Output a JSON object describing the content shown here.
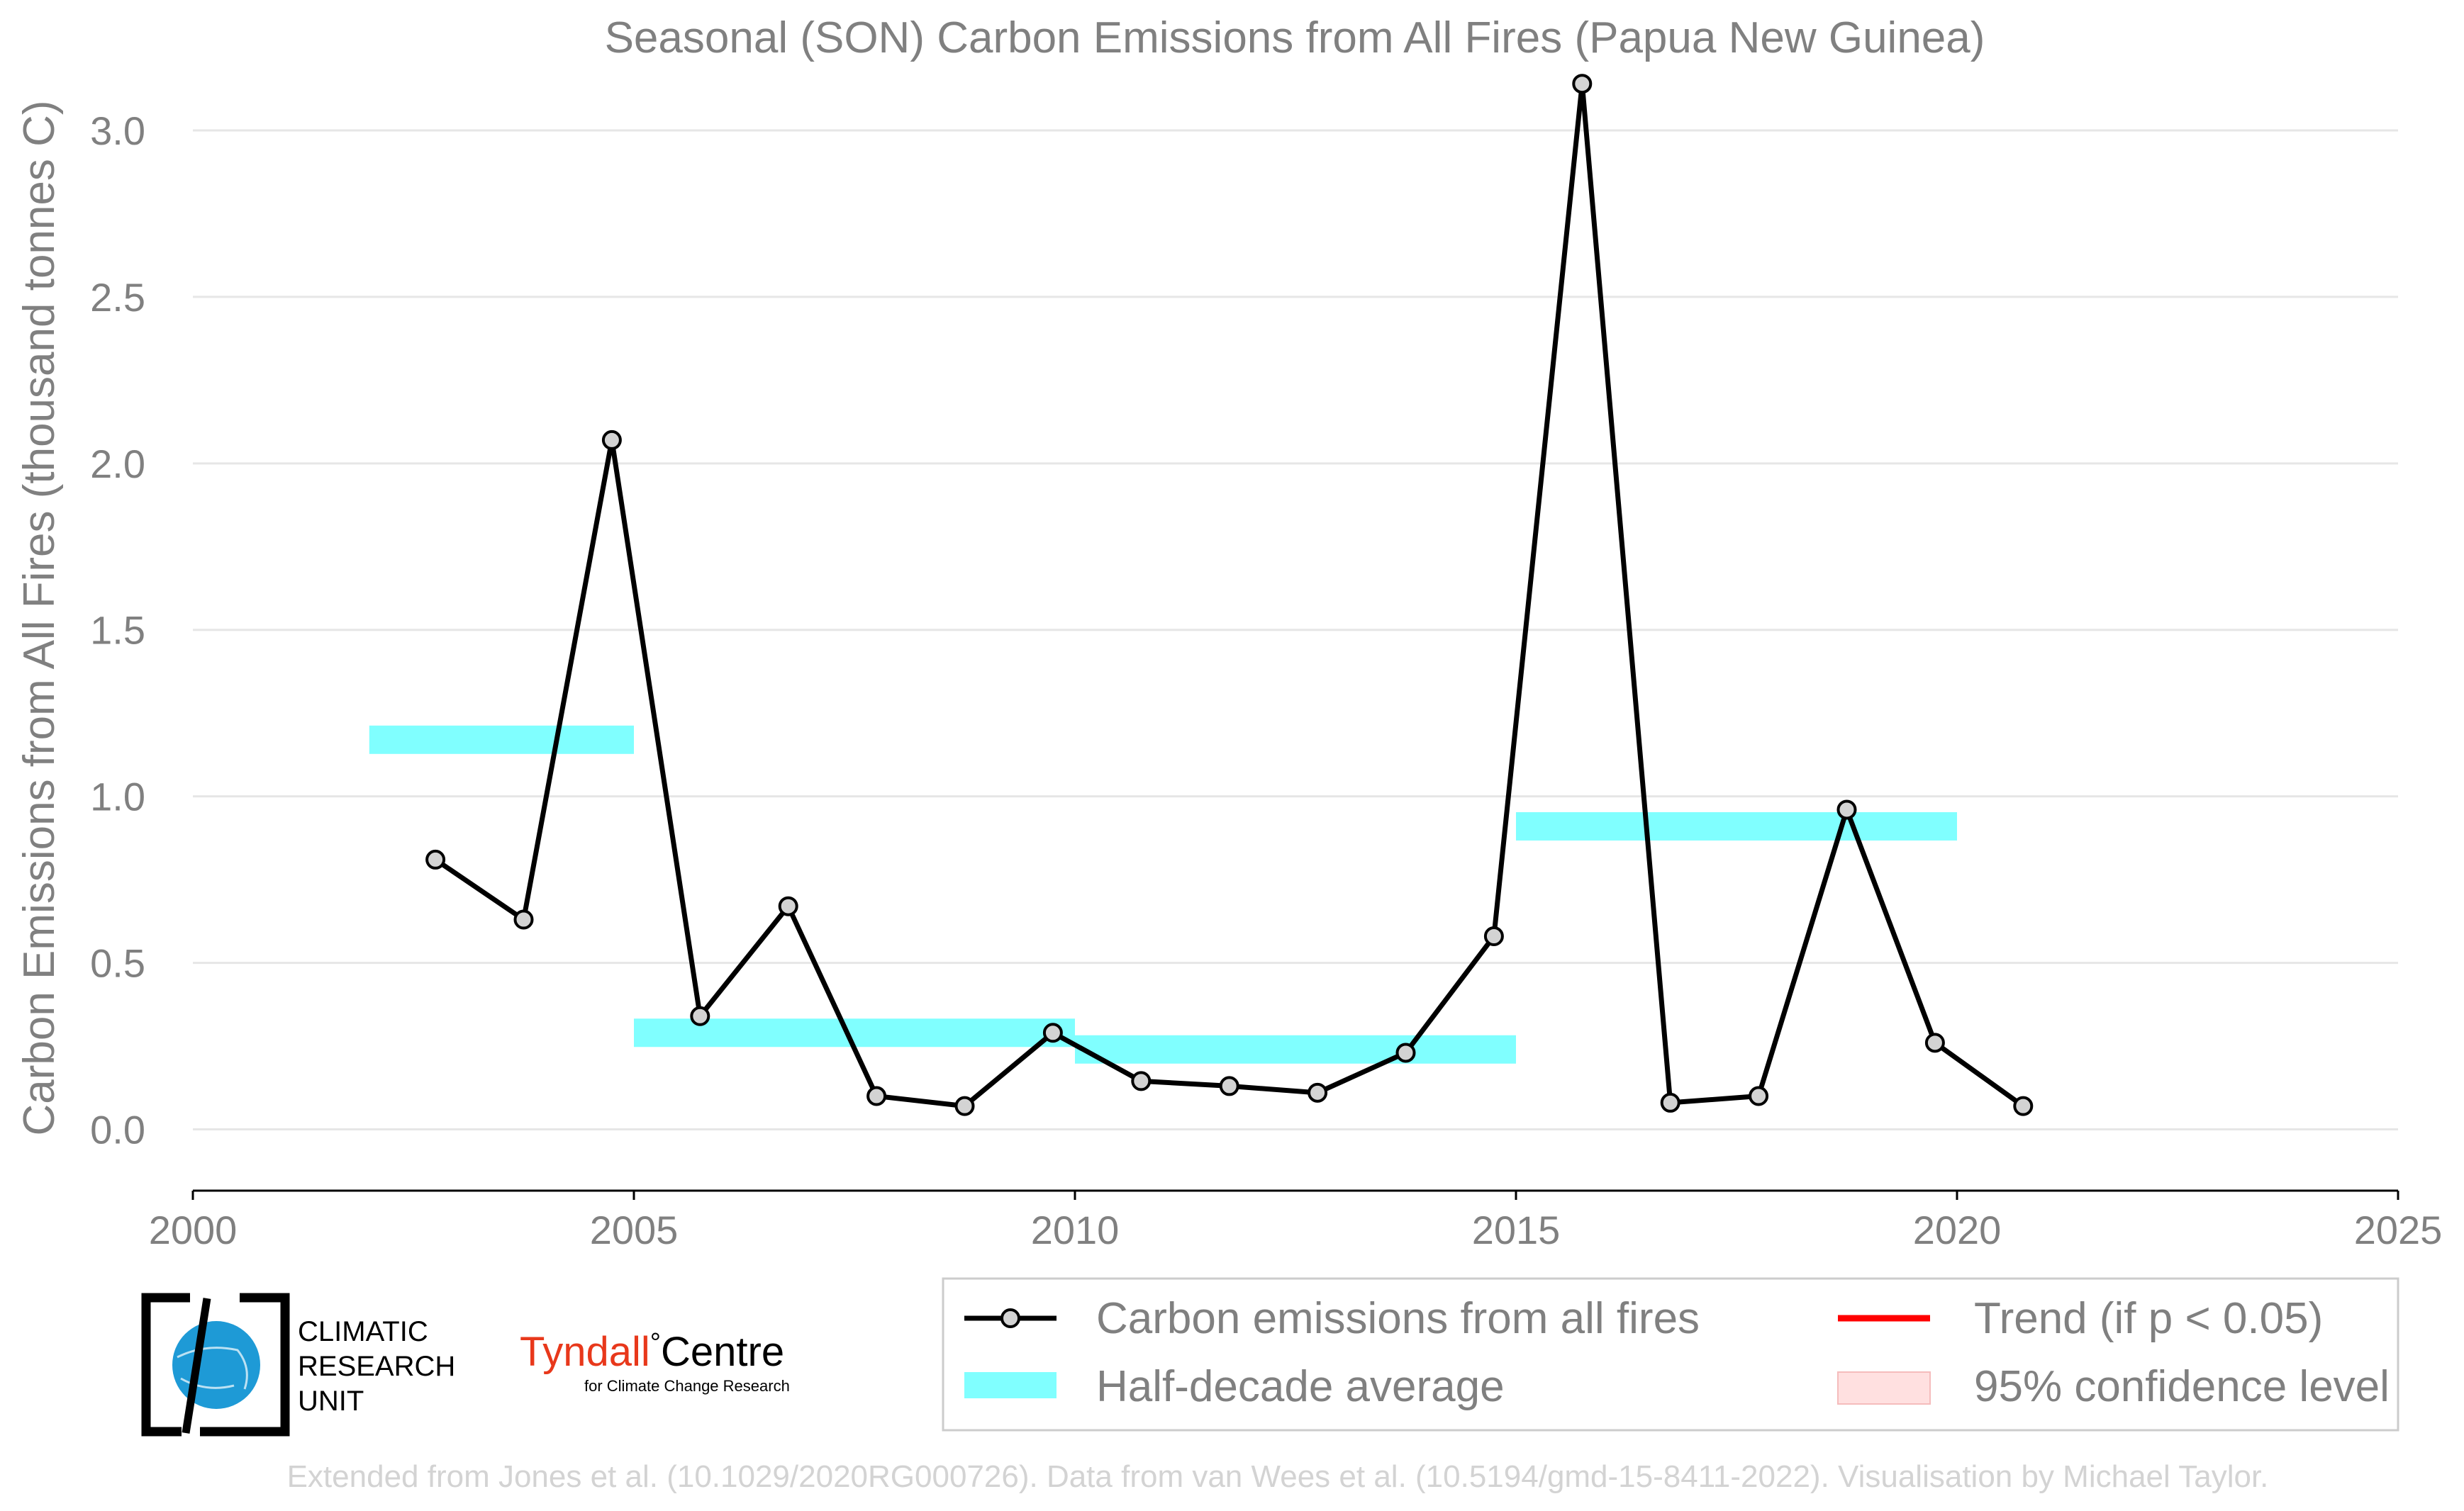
{
  "chart_data": {
    "type": "line",
    "title": "Seasonal (SON) Carbon Emissions from All Fires (Papua New Guinea)",
    "xlabel": "",
    "ylabel": "Carbon Emissions from All Fires (thousand tonnes C)",
    "xlim": [
      2000,
      2025
    ],
    "ylim": [
      -0.05,
      3.2
    ],
    "x_ticks": [
      2000,
      2005,
      2010,
      2015,
      2020,
      2025
    ],
    "y_ticks": [
      0.0,
      0.5,
      1.0,
      1.5,
      2.0,
      2.5,
      3.0
    ],
    "x_tick_labels": [
      "2000",
      "2005",
      "2010",
      "2015",
      "2020",
      "2025"
    ],
    "y_tick_labels": [
      "0.0",
      "0.5",
      "1.0",
      "1.5",
      "2.0",
      "2.5",
      "3.0"
    ],
    "grid": "horizontal",
    "legend_position": "bottom-right",
    "series": [
      {
        "name": "Carbon emissions from all fires",
        "type": "line",
        "color": "#000000",
        "marker_fill": "#d3d3d3",
        "x": [
          2002.75,
          2003.75,
          2004.75,
          2005.75,
          2006.75,
          2007.75,
          2008.75,
          2009.75,
          2010.75,
          2011.75,
          2012.75,
          2013.75,
          2014.75,
          2015.75,
          2016.75,
          2017.75,
          2018.75,
          2019.75,
          2020.75
        ],
        "y": [
          0.81,
          0.63,
          2.07,
          0.34,
          0.67,
          0.1,
          0.07,
          0.29,
          0.145,
          0.13,
          0.11,
          0.23,
          0.58,
          3.14,
          0.08,
          0.1,
          0.96,
          0.26,
          0.07
        ]
      },
      {
        "name": "Half-decade average",
        "type": "step",
        "color": "#80ffff",
        "segments": [
          {
            "x_start": 2002,
            "x_end": 2005,
            "y": 1.17
          },
          {
            "x_start": 2005,
            "x_end": 2010,
            "y": 0.29
          },
          {
            "x_start": 2010,
            "x_end": 2015,
            "y": 0.24
          },
          {
            "x_start": 2015,
            "x_end": 2020,
            "y": 0.91
          }
        ]
      }
    ],
    "legend": [
      {
        "label": "Carbon emissions from all fires",
        "style": "line-marker",
        "color": "#000000"
      },
      {
        "label": "Trend (if p < 0.05)",
        "style": "line",
        "color": "#ff0000"
      },
      {
        "label": "Half-decade average",
        "style": "band",
        "color": "#80ffff"
      },
      {
        "label": "95% confidence level",
        "style": "patch",
        "color": "#ffe0e0"
      }
    ]
  },
  "logos": {
    "cru_lines": [
      "CLIMATIC",
      "RESEARCH",
      "UNIT"
    ],
    "tyndall_red": "Tyndall",
    "tyndall_degree": "°",
    "tyndall_black": "Centre",
    "tyndall_sub": "for Climate Change Research",
    "tyndall_color": "#e8381b",
    "cru_globe_color": "#1e9ad6"
  },
  "footer": "Extended from Jones et al. (10.1029/2020RG000726). Data from van Wees et al. (10.5194/gmd-15-8411-2022). Visualisation by Michael Taylor."
}
